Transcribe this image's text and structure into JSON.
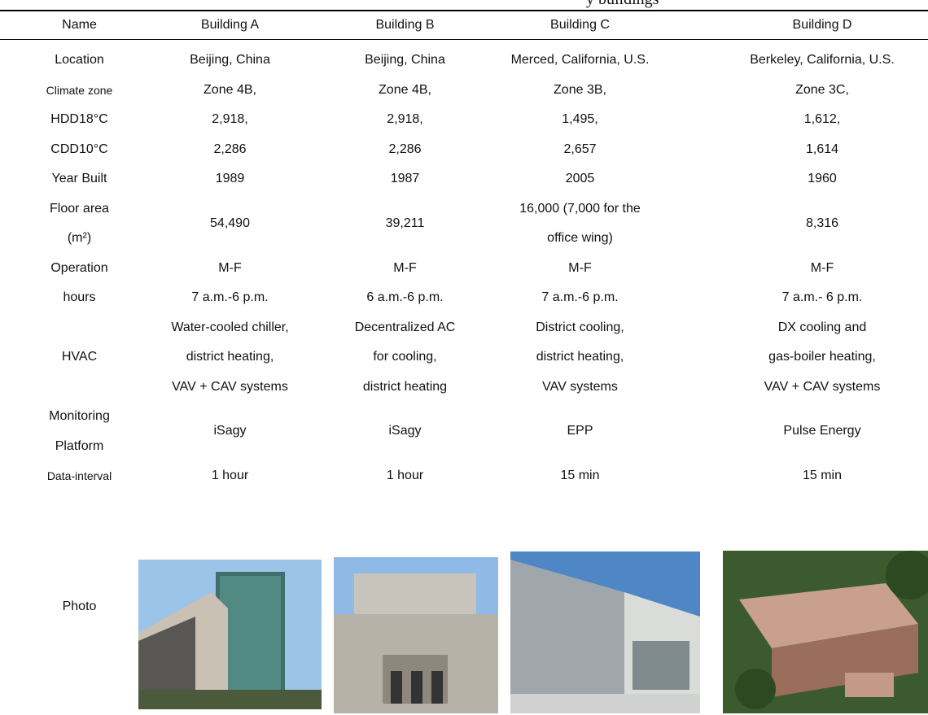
{
  "caption": "y buildings",
  "header": [
    "Name",
    "Building A",
    "Building B",
    "Building C",
    "Building D"
  ],
  "rows": [
    {
      "cells": [
        [
          "Location"
        ],
        [
          "Beijing, China"
        ],
        [
          "Beijing, China"
        ],
        [
          "Merced, California, U.S."
        ],
        [
          "Berkeley, California, U.S."
        ]
      ]
    },
    {
      "cells": [
        [
          "Climate zone"
        ],
        [
          "Zone 4B,"
        ],
        [
          "Zone 4B,"
        ],
        [
          "Zone 3B,"
        ],
        [
          "Zone 3C,"
        ]
      ]
    },
    {
      "cells": [
        [
          "HDD18°C"
        ],
        [
          "2,918,"
        ],
        [
          "2,918,"
        ],
        [
          "1,495,"
        ],
        [
          "1,612,"
        ]
      ]
    },
    {
      "cells": [
        [
          "CDD10°C"
        ],
        [
          "2,286"
        ],
        [
          "2,286"
        ],
        [
          "2,657"
        ],
        [
          "1,614"
        ]
      ]
    },
    {
      "cells": [
        [
          "Year Built"
        ],
        [
          "1989"
        ],
        [
          "1987"
        ],
        [
          "2005"
        ],
        [
          "1960"
        ]
      ]
    },
    {
      "cells": [
        [
          "Floor area",
          "(m²)"
        ],
        [
          "54,490"
        ],
        [
          "39,211"
        ],
        [
          "16,000 (7,000 for the",
          "office wing)"
        ],
        [
          "8,316"
        ]
      ]
    },
    {
      "cells": [
        [
          "Operation",
          "hours"
        ],
        [
          "M-F",
          "7 a.m.-6 p.m."
        ],
        [
          "M-F",
          "6 a.m.-6 p.m."
        ],
        [
          "M-F",
          "7 a.m.-6 p.m."
        ],
        [
          "M-F",
          "7 a.m.- 6 p.m."
        ]
      ]
    },
    {
      "cells": [
        [
          "HVAC"
        ],
        [
          "Water-cooled chiller,",
          "district heating,",
          "VAV + CAV systems"
        ],
        [
          "Decentralized AC",
          "for cooling,",
          "district heating"
        ],
        [
          "District cooling,",
          "district heating,",
          "VAV systems"
        ],
        [
          "DX cooling and",
          "gas-boiler heating,",
          "VAV + CAV systems"
        ]
      ]
    },
    {
      "cells": [
        [
          "Monitoring",
          "Platform"
        ],
        [
          "iSagy"
        ],
        [
          "iSagy"
        ],
        [
          "EPP"
        ],
        [
          "Pulse Energy"
        ]
      ]
    },
    {
      "cells": [
        [
          "Data-interval"
        ],
        [
          "1 hour"
        ],
        [
          "1 hour"
        ],
        [
          "15 min"
        ],
        [
          "15 min"
        ]
      ]
    }
  ],
  "photo_label": "Photo"
}
